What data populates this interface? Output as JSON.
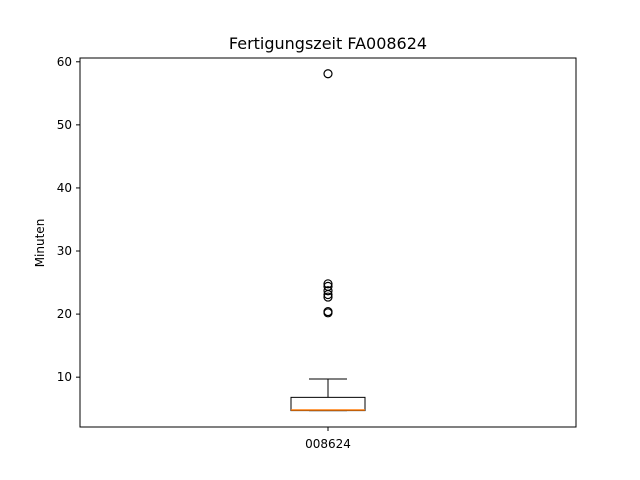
{
  "chart_data": {
    "type": "box",
    "title": "Fertigungszeit FA008624",
    "xlabel": "",
    "ylabel": "Minuten",
    "categories": [
      "008624"
    ],
    "ylim": [
      2.1,
      60.6
    ],
    "yticks": [
      10,
      20,
      30,
      40,
      50,
      60
    ],
    "grid": false,
    "boxes": [
      {
        "category": "008624",
        "whisker_low": 4.7,
        "q1": 4.7,
        "median": 4.8,
        "q3": 6.8,
        "whisker_high": 9.7,
        "outliers": [
          20.2,
          20.4,
          22.7,
          23.1,
          23.7,
          24.4,
          24.8,
          58.1
        ]
      }
    ],
    "colors": {
      "box": "#000000",
      "median": "#ff7f0e",
      "outlier": "#000000"
    }
  }
}
